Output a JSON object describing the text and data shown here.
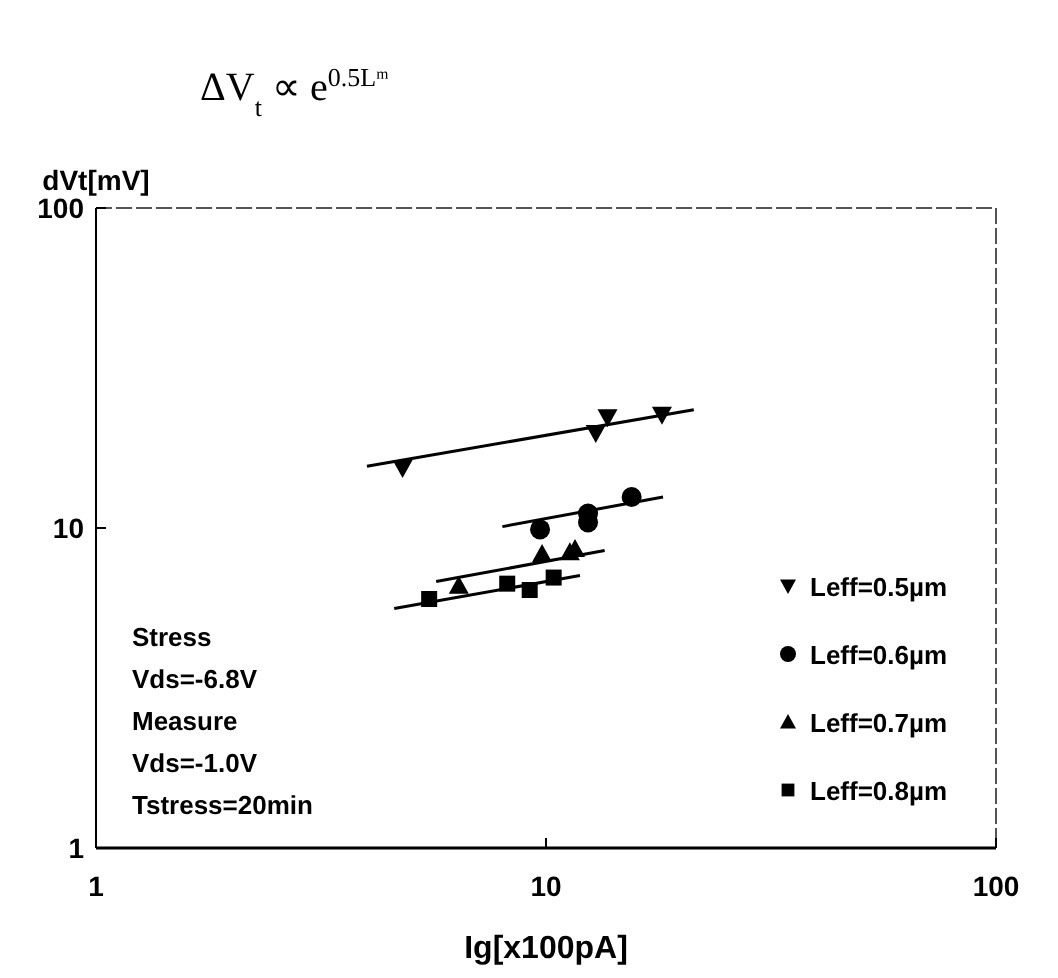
{
  "chart_data": {
    "type": "scatter",
    "title": "ΔV$_{t}$ ∝ e$^{0.5Lᵐ}$",
    "xlabel": "Ig[x100pA]",
    "ylabel": "dVt[mV]",
    "log": "xy",
    "xlim": [
      1,
      100
    ],
    "ylim": [
      1,
      100
    ],
    "xticks": [
      1,
      10,
      100
    ],
    "yticks": [
      1,
      10,
      100
    ],
    "grid": false,
    "legend": "bottom right",
    "annotations": [
      "Stress",
      "Vds=-6.8V",
      "Measure",
      "Vds=-1.0V",
      "Tstress=20min"
    ],
    "series": [
      {
        "name": "Leff=0.5µm",
        "color": "#000000",
        "marker": "triangle-down",
        "x": [
          4.8,
          12.9,
          13.7,
          18.1
        ],
        "values": [
          15.4,
          19.8,
          22.2,
          22.6
        ]
      },
      {
        "name": "Leff=0.6µm",
        "color": "#000000",
        "marker": "circle",
        "x": [
          9.7,
          12.4,
          12.4,
          15.5
        ],
        "values": [
          9.9,
          11.1,
          10.4,
          12.5
        ]
      },
      {
        "name": "Leff=0.7µm",
        "color": "#000000",
        "marker": "triangle",
        "x": [
          6.4,
          9.8,
          11.3,
          11.6
        ],
        "values": [
          6.6,
          8.3,
          8.4,
          8.6
        ]
      },
      {
        "name": "Leff=0.8µm",
        "color": "#000000",
        "marker": "square",
        "x": [
          5.5,
          8.2,
          9.2,
          10.4
        ],
        "values": [
          6.0,
          6.7,
          6.4,
          7.0
        ]
      },
      {
        "type": "line",
        "color": "#000000",
        "x": [
          4.0,
          21.3
        ],
        "values": [
          15.6,
          23.4
        ]
      },
      {
        "type": "line",
        "color": "#000000",
        "x": [
          8.0,
          18.2
        ],
        "values": [
          10.1,
          12.5
        ]
      },
      {
        "type": "line",
        "color": "#000000",
        "x": [
          5.7,
          13.5
        ],
        "values": [
          6.8,
          8.5
        ]
      },
      {
        "type": "line",
        "color": "#000000",
        "x": [
          4.6,
          11.9
        ],
        "values": [
          5.6,
          7.1
        ]
      }
    ]
  }
}
